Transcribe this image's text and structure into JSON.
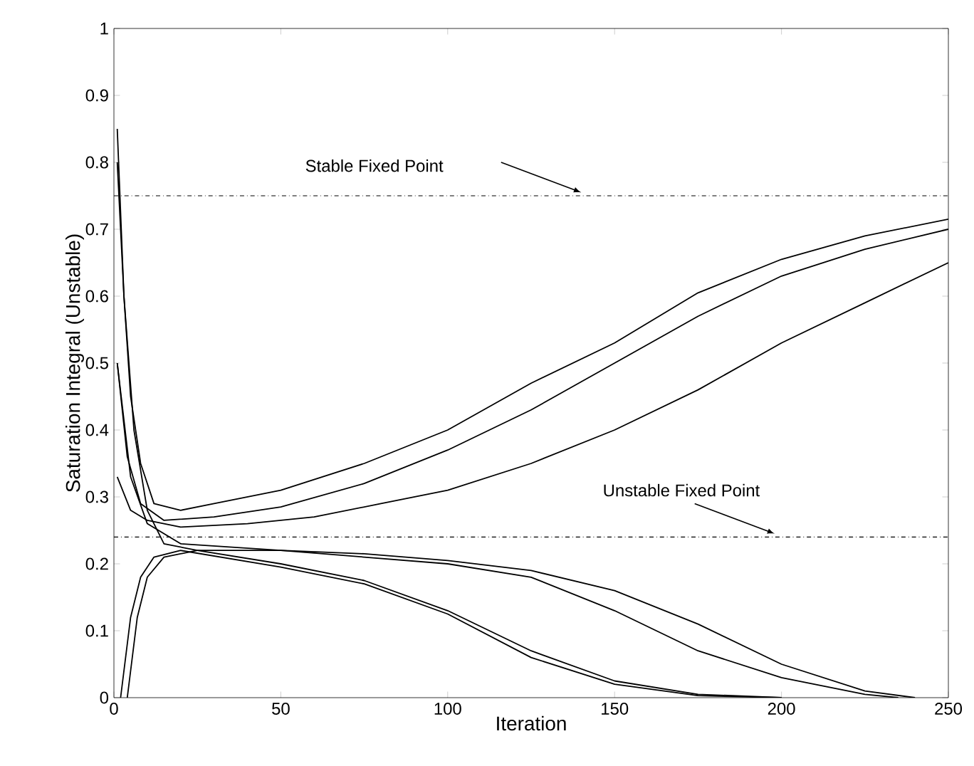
{
  "chart_data": {
    "type": "line",
    "xlabel": "Iteration",
    "ylabel": "Saturation Integral (Unstable)",
    "xlim": [
      0,
      250
    ],
    "ylim": [
      0,
      1
    ],
    "xticks": [
      0,
      50,
      100,
      150,
      200,
      250
    ],
    "yticks": [
      0,
      0.1,
      0.2,
      0.3,
      0.4,
      0.5,
      0.6,
      0.7,
      0.8,
      0.9,
      1
    ],
    "grid": false,
    "marker": "none",
    "line_style": "solid",
    "ref_lines": [
      {
        "axis": "y",
        "value": 0.75,
        "label": "Stable Fixed Point",
        "line_style": "dashdot",
        "color": "#000000"
      },
      {
        "axis": "y",
        "value": 0.24,
        "label": "Unstable Fixed Point",
        "line_style": "dashdot",
        "color": "#000000"
      }
    ],
    "series": [
      {
        "color": "#000000",
        "x": [
          1,
          3,
          5,
          8,
          12,
          20,
          30,
          50,
          75,
          100,
          125,
          150,
          175,
          200,
          225,
          250
        ],
        "values": [
          0.85,
          0.6,
          0.45,
          0.35,
          0.29,
          0.28,
          0.29,
          0.31,
          0.35,
          0.4,
          0.47,
          0.53,
          0.605,
          0.655,
          0.69,
          0.715
        ]
      },
      {
        "color": "#000000",
        "x": [
          1,
          4,
          8,
          15,
          30,
          50,
          75,
          100,
          125,
          150,
          175,
          200,
          225,
          250
        ],
        "values": [
          0.5,
          0.36,
          0.29,
          0.265,
          0.27,
          0.285,
          0.32,
          0.37,
          0.43,
          0.5,
          0.57,
          0.63,
          0.67,
          0.7
        ]
      },
      {
        "color": "#000000",
        "x": [
          1,
          5,
          10,
          20,
          40,
          60,
          80,
          100,
          125,
          150,
          175,
          200,
          225,
          250
        ],
        "values": [
          0.33,
          0.28,
          0.265,
          0.255,
          0.26,
          0.27,
          0.29,
          0.31,
          0.35,
          0.4,
          0.46,
          0.53,
          0.59,
          0.65
        ]
      },
      {
        "color": "#000000",
        "x": [
          1,
          3,
          6,
          10,
          15,
          25,
          50,
          75,
          100,
          125,
          150,
          175,
          200
        ],
        "values": [
          0.8,
          0.6,
          0.4,
          0.28,
          0.23,
          0.22,
          0.2,
          0.175,
          0.13,
          0.07,
          0.025,
          0.005,
          0
        ]
      },
      {
        "color": "#000000",
        "x": [
          2,
          5,
          8,
          12,
          20,
          50,
          75,
          100,
          125,
          150,
          175,
          200
        ],
        "values": [
          0,
          0.12,
          0.18,
          0.21,
          0.22,
          0.195,
          0.17,
          0.125,
          0.06,
          0.02,
          0.003,
          0
        ]
      },
      {
        "color": "#000000",
        "x": [
          4,
          7,
          10,
          15,
          25,
          50,
          75,
          100,
          125,
          150,
          175,
          200,
          225,
          240
        ],
        "values": [
          0,
          0.12,
          0.18,
          0.21,
          0.22,
          0.22,
          0.215,
          0.205,
          0.19,
          0.16,
          0.11,
          0.05,
          0.01,
          0
        ]
      },
      {
        "color": "#000000",
        "x": [
          1,
          5,
          10,
          20,
          50,
          75,
          100,
          125,
          150,
          175,
          200,
          225,
          235
        ],
        "values": [
          0.5,
          0.33,
          0.26,
          0.23,
          0.22,
          0.21,
          0.2,
          0.18,
          0.13,
          0.07,
          0.03,
          0.005,
          0
        ]
      }
    ]
  }
}
